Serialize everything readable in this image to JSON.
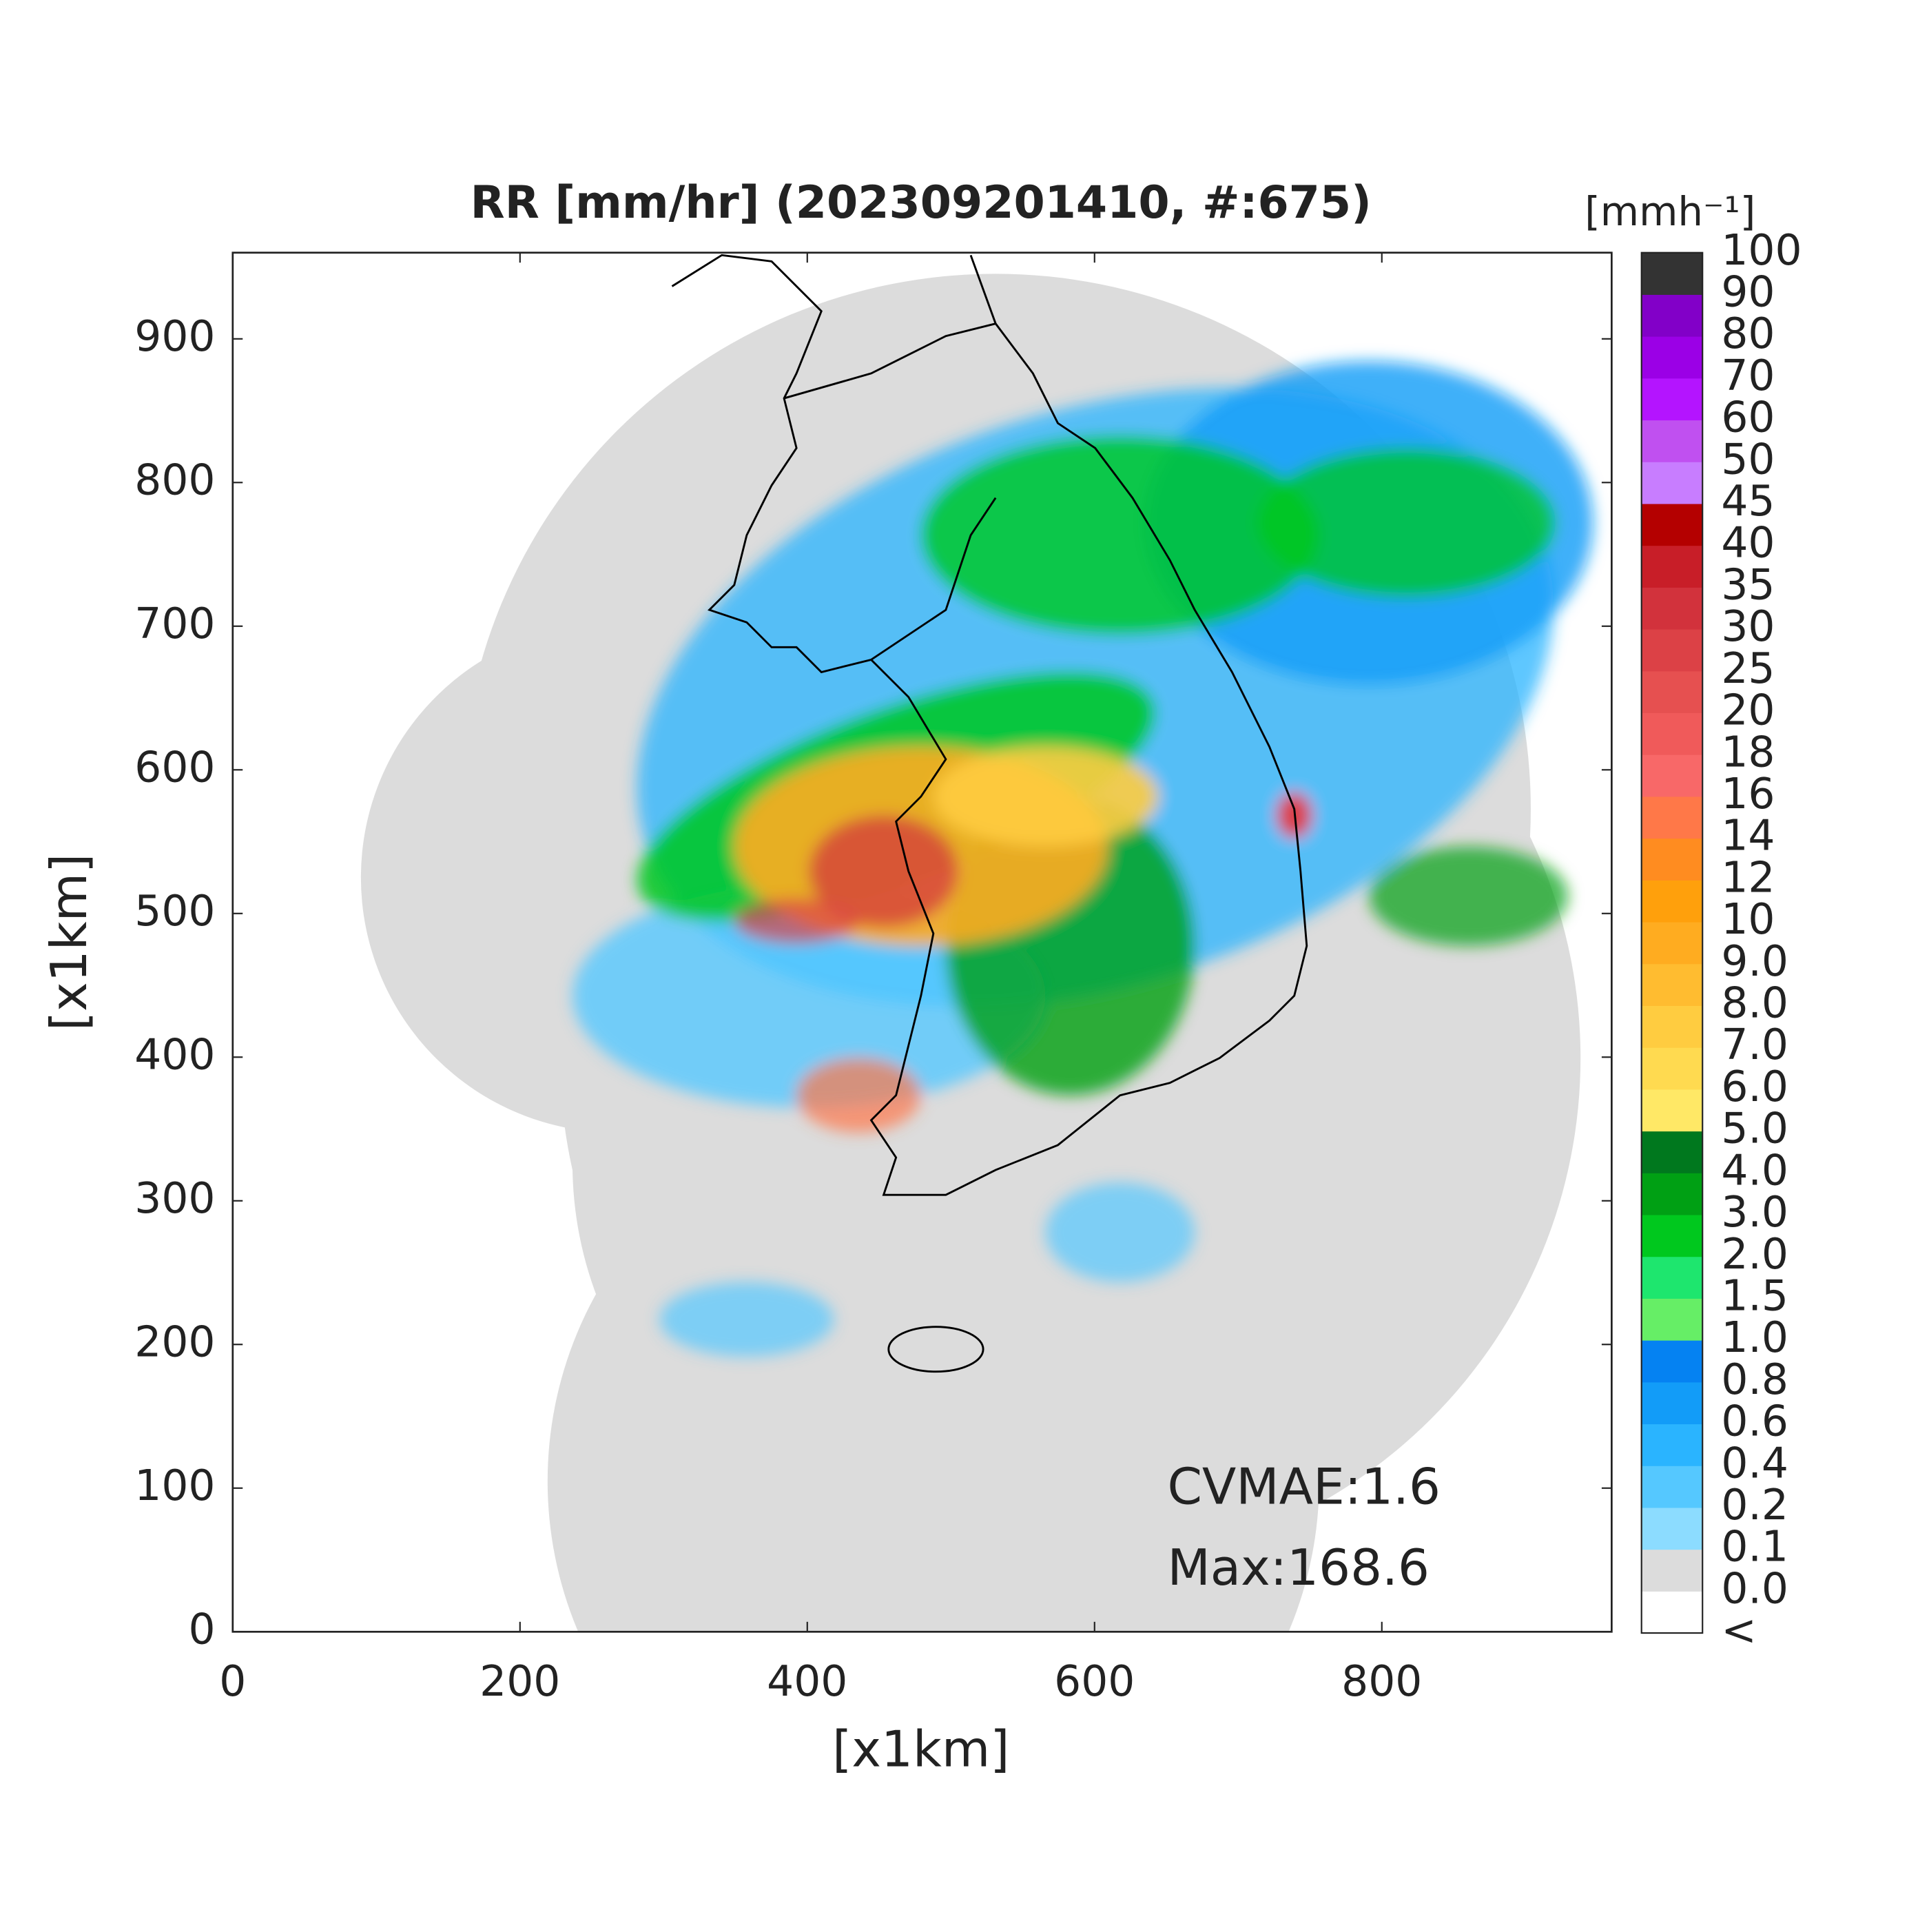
{
  "chart_data": {
    "type": "heatmap",
    "title": "RR [mm/hr] (202309201410, #:675)",
    "xlabel": "[x1km]",
    "ylabel": "[x1km]",
    "xlim": [
      0,
      960
    ],
    "ylim": [
      0,
      960
    ],
    "xticks": [
      0,
      200,
      400,
      600,
      800
    ],
    "yticks": [
      0,
      100,
      200,
      300,
      400,
      500,
      600,
      700,
      800,
      900
    ],
    "colorbar": {
      "title": "[mmh⁻¹]",
      "labels": [
        "<",
        "0.0",
        "0.1",
        "0.2",
        "0.4",
        "0.6",
        "0.8",
        "1.0",
        "1.5",
        "2.0",
        "3.0",
        "4.0",
        "5.0",
        "6.0",
        "7.0",
        "8.0",
        "9.0",
        "10",
        "12",
        "14",
        "16",
        "18",
        "20",
        "25",
        "30",
        "35",
        "40",
        "45",
        "50",
        "60",
        "70",
        "80",
        "90",
        "100"
      ],
      "colors": [
        "#ffffff",
        "#dcdcdc",
        "#8cdcff",
        "#55c8ff",
        "#2ab4ff",
        "#129cf8",
        "#0582f2",
        "#66ee66",
        "#1ee66e",
        "#00c81e",
        "#00a014",
        "#00781e",
        "#ffe866",
        "#ffda50",
        "#ffcc40",
        "#ffbc30",
        "#ffac20",
        "#ffa00c",
        "#ff8c20",
        "#ff7848",
        "#f86868",
        "#f05a5a",
        "#e65050",
        "#dc4146",
        "#d2323c",
        "#c81e28",
        "#b40000",
        "#c87dff",
        "#c050f0",
        "#b414ff",
        "#9b00e6",
        "#8200c8",
        "#333333"
      ]
    },
    "annotations": [
      "CVMAE:1.6",
      "Max:168.6"
    ]
  }
}
